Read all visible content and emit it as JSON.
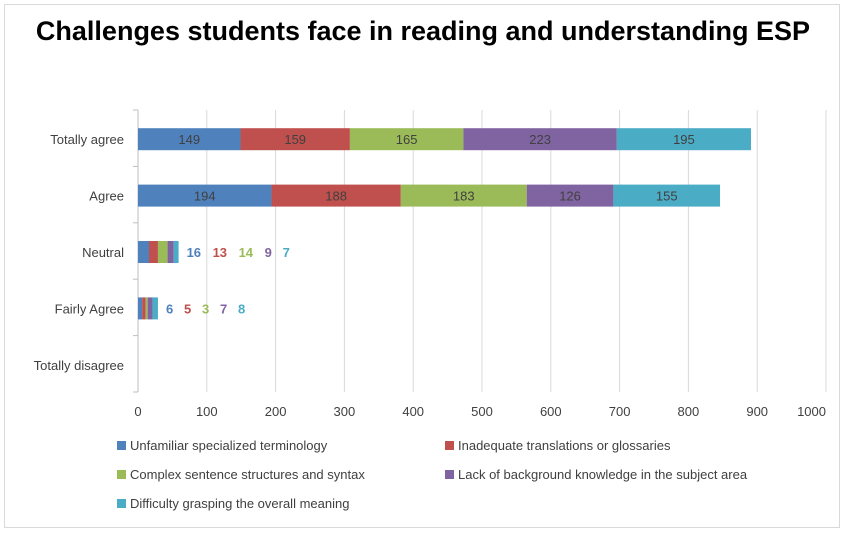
{
  "chart_data": {
    "type": "bar",
    "orientation": "horizontal",
    "stacked": true,
    "title": "Challenges students face in reading and understanding ESP",
    "categories": [
      "Totally agree",
      "Agree",
      "Neutral",
      "Fairly Agree",
      "Totally disagree"
    ],
    "series": [
      {
        "name": "Unfamiliar specialized terminology",
        "color": "#4f81bd",
        "values": [
          149,
          194,
          16,
          6,
          0
        ]
      },
      {
        "name": "Inadequate translations or glossaries",
        "color": "#c0504d",
        "values": [
          159,
          188,
          13,
          5,
          0
        ]
      },
      {
        "name": "Complex sentence structures and syntax",
        "color": "#9bbb59",
        "values": [
          165,
          183,
          14,
          3,
          0
        ]
      },
      {
        "name": "Lack of background knowledge in the subject area",
        "color": "#8064a2",
        "values": [
          223,
          126,
          9,
          7,
          0
        ]
      },
      {
        "name": "Difficulty grasping the overall meaning",
        "color": "#4bacc6",
        "values": [
          195,
          155,
          7,
          8,
          0
        ]
      }
    ],
    "xlim": [
      0,
      1000
    ],
    "xticks": [
      "0",
      "100",
      "200",
      "300",
      "400",
      "500",
      "600",
      "700",
      "800",
      "900",
      "1000"
    ],
    "grid": true,
    "legend": "bottom"
  }
}
